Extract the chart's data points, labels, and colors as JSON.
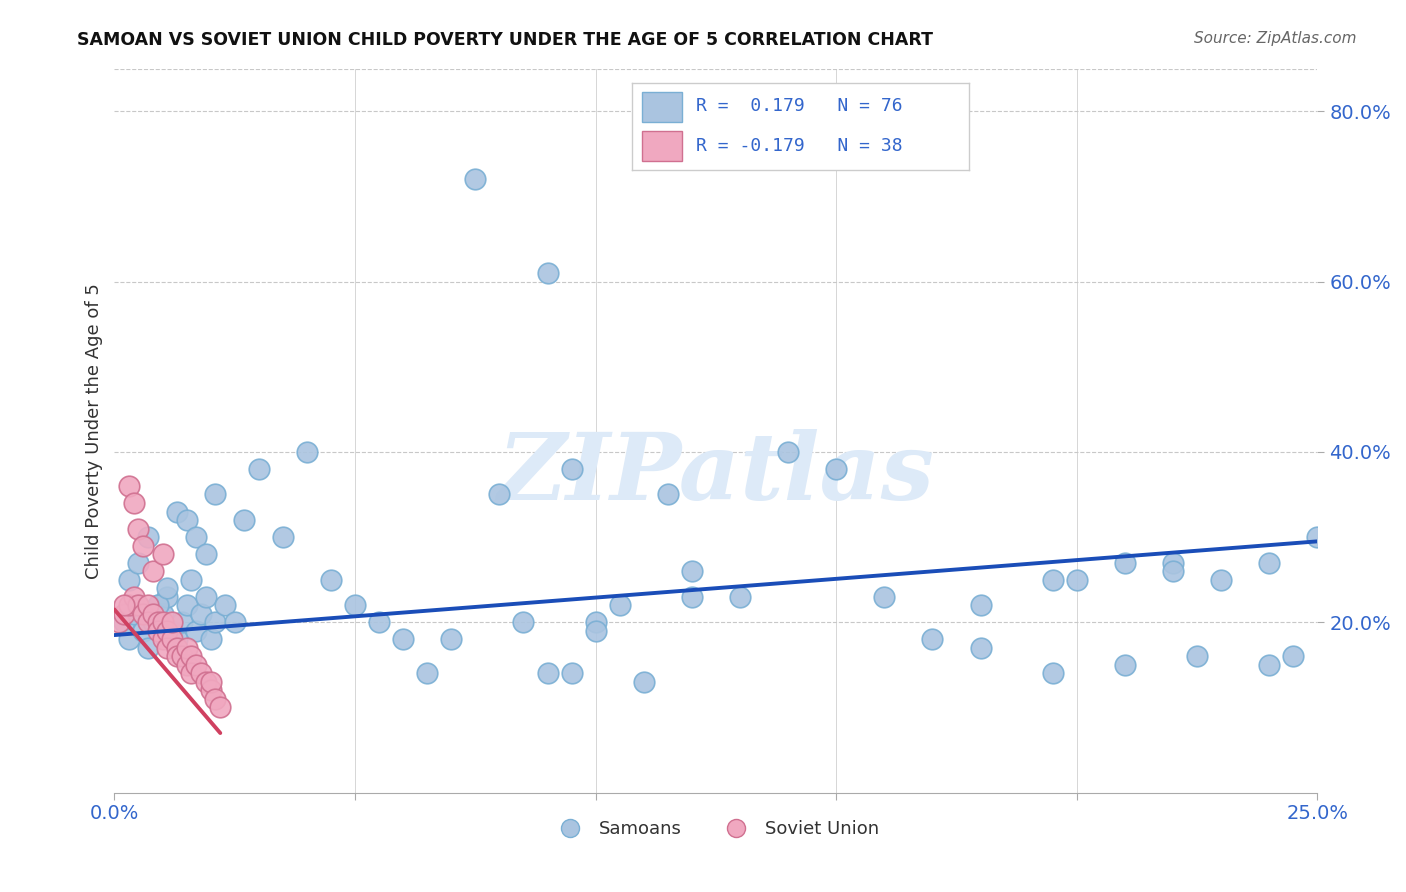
{
  "title": "SAMOAN VS SOVIET UNION CHILD POVERTY UNDER THE AGE OF 5 CORRELATION CHART",
  "source": "Source: ZipAtlas.com",
  "ylabel": "Child Poverty Under the Age of 5",
  "xlim": [
    0.0,
    0.25
  ],
  "ylim": [
    0.0,
    0.85
  ],
  "samoans_color": "#aac4e0",
  "samoans_edge": "#7aafd4",
  "soviet_color": "#f0a8c0",
  "soviet_edge": "#d07090",
  "trend_samoan_color": "#1a4db8",
  "trend_soviet_color": "#d04060",
  "watermark_color": "#ddeaf8",
  "grid_color": "#c8c8c8",
  "R_samoan": 0.179,
  "N_samoan": 76,
  "R_soviet": -0.179,
  "N_soviet": 38,
  "samoans_x": [
    0.002,
    0.003,
    0.004,
    0.005,
    0.006,
    0.007,
    0.008,
    0.009,
    0.01,
    0.011,
    0.012,
    0.013,
    0.014,
    0.015,
    0.016,
    0.017,
    0.018,
    0.019,
    0.02,
    0.021,
    0.003,
    0.005,
    0.007,
    0.009,
    0.011,
    0.013,
    0.015,
    0.017,
    0.019,
    0.021,
    0.023,
    0.025,
    0.027,
    0.03,
    0.035,
    0.04,
    0.045,
    0.05,
    0.055,
    0.06,
    0.065,
    0.07,
    0.075,
    0.08,
    0.085,
    0.09,
    0.095,
    0.1,
    0.11,
    0.12,
    0.095,
    0.105,
    0.115,
    0.13,
    0.14,
    0.12,
    0.09,
    0.1,
    0.15,
    0.16,
    0.17,
    0.18,
    0.195,
    0.21,
    0.22,
    0.23,
    0.24,
    0.18,
    0.2,
    0.22,
    0.195,
    0.21,
    0.225,
    0.24,
    0.245,
    0.25
  ],
  "samoans_y": [
    0.2,
    0.18,
    0.21,
    0.22,
    0.19,
    0.17,
    0.2,
    0.22,
    0.21,
    0.23,
    0.19,
    0.18,
    0.2,
    0.22,
    0.25,
    0.19,
    0.21,
    0.23,
    0.18,
    0.2,
    0.25,
    0.27,
    0.3,
    0.22,
    0.24,
    0.33,
    0.32,
    0.3,
    0.28,
    0.35,
    0.22,
    0.2,
    0.32,
    0.38,
    0.3,
    0.4,
    0.25,
    0.22,
    0.2,
    0.18,
    0.14,
    0.18,
    0.72,
    0.35,
    0.2,
    0.61,
    0.14,
    0.2,
    0.13,
    0.23,
    0.38,
    0.22,
    0.35,
    0.23,
    0.4,
    0.26,
    0.14,
    0.19,
    0.38,
    0.23,
    0.18,
    0.17,
    0.25,
    0.27,
    0.27,
    0.25,
    0.27,
    0.22,
    0.25,
    0.26,
    0.14,
    0.15,
    0.16,
    0.15,
    0.16,
    0.3
  ],
  "soviet_x": [
    0.001,
    0.002,
    0.003,
    0.004,
    0.005,
    0.006,
    0.007,
    0.007,
    0.008,
    0.009,
    0.009,
    0.01,
    0.01,
    0.011,
    0.011,
    0.012,
    0.013,
    0.013,
    0.014,
    0.015,
    0.015,
    0.016,
    0.016,
    0.017,
    0.018,
    0.019,
    0.02,
    0.02,
    0.021,
    0.022,
    0.003,
    0.004,
    0.005,
    0.006,
    0.008,
    0.01,
    0.012,
    0.002
  ],
  "soviet_y": [
    0.2,
    0.21,
    0.22,
    0.23,
    0.22,
    0.21,
    0.22,
    0.2,
    0.21,
    0.2,
    0.19,
    0.18,
    0.2,
    0.19,
    0.17,
    0.18,
    0.17,
    0.16,
    0.16,
    0.15,
    0.17,
    0.16,
    0.14,
    0.15,
    0.14,
    0.13,
    0.12,
    0.13,
    0.11,
    0.1,
    0.36,
    0.34,
    0.31,
    0.29,
    0.26,
    0.28,
    0.2,
    0.22
  ],
  "trend_sam_x0": 0.0,
  "trend_sam_y0": 0.185,
  "trend_sam_x1": 0.25,
  "trend_sam_y1": 0.295,
  "trend_sov_x0": 0.0,
  "trend_sov_y0": 0.215,
  "trend_sov_x1": 0.022,
  "trend_sov_y1": 0.07
}
